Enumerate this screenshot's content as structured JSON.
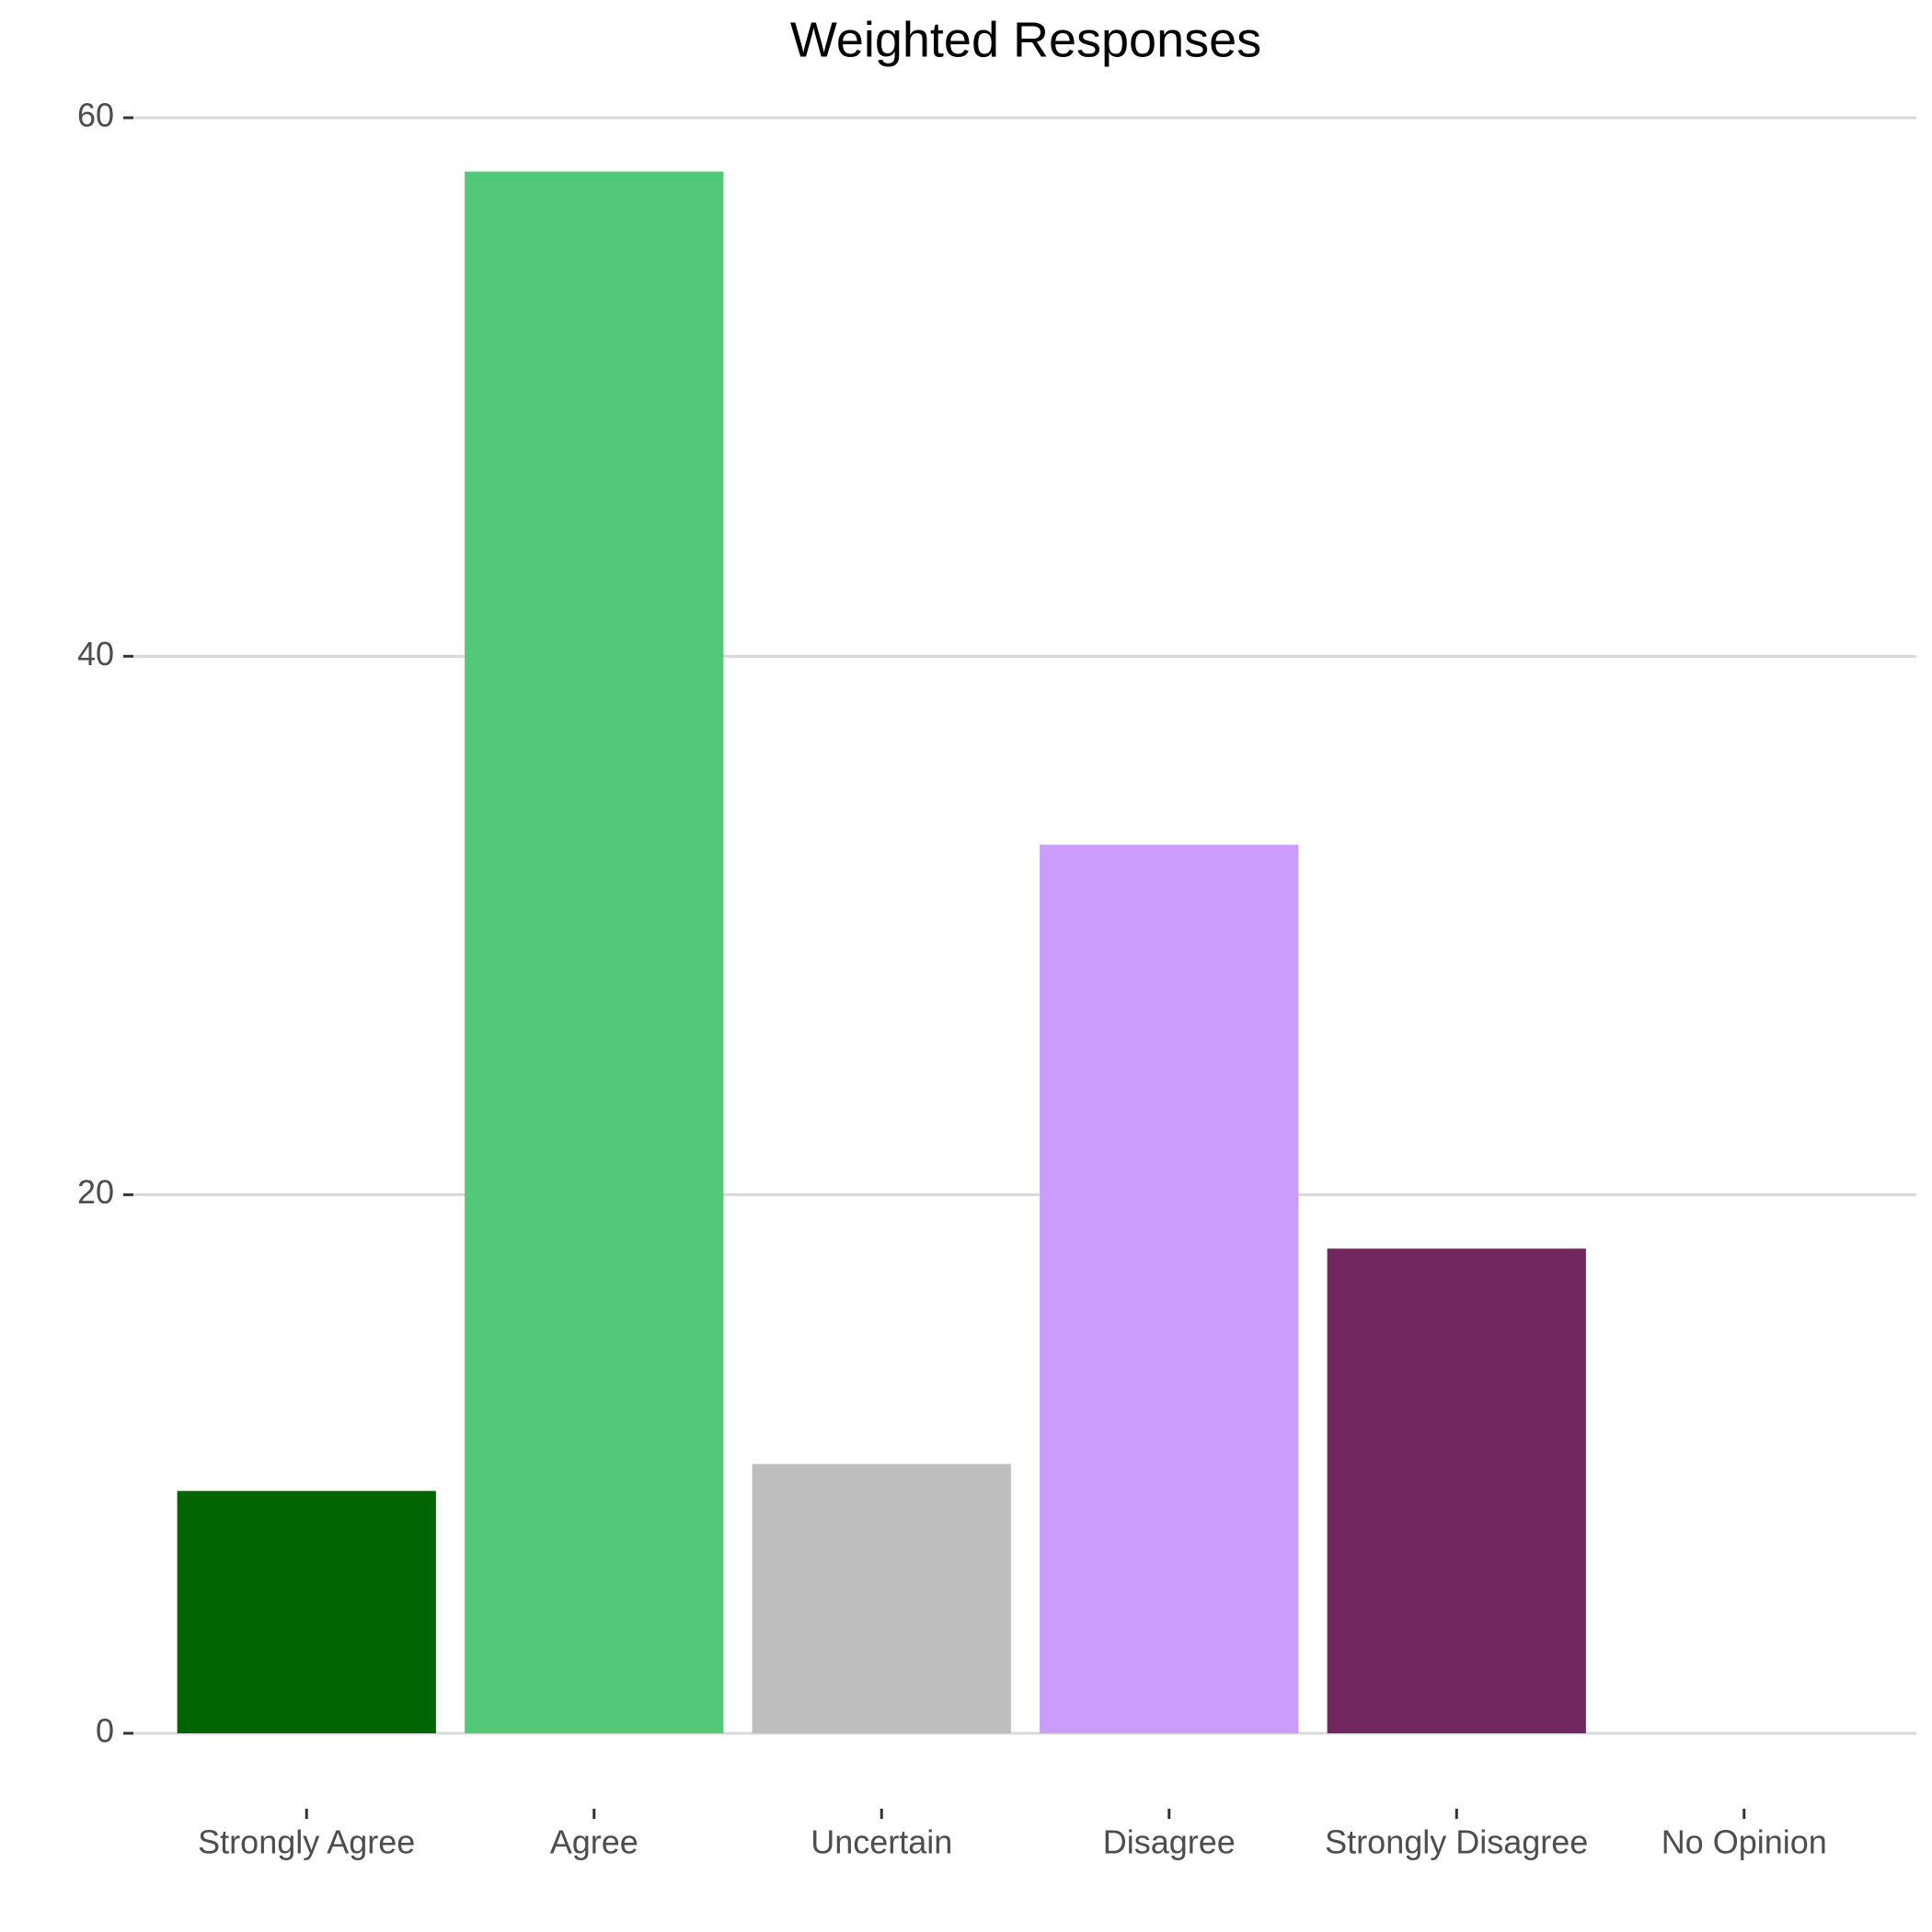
{
  "chart_data": {
    "type": "bar",
    "title": "Weighted Responses",
    "categories": [
      "Strongly Agree",
      "Agree",
      "Uncertain",
      "Disagree",
      "Strongly Disagree",
      "No Opinion"
    ],
    "values": [
      9,
      58,
      10,
      33,
      18,
      0
    ],
    "colors": [
      "#006400",
      "#52c878",
      "#bebebe",
      "#cc9cfc",
      "#72275e",
      "#d9d9d9"
    ],
    "ylim": [
      0,
      60
    ],
    "yticks": [
      0,
      20,
      40,
      60
    ],
    "grid": true
  }
}
